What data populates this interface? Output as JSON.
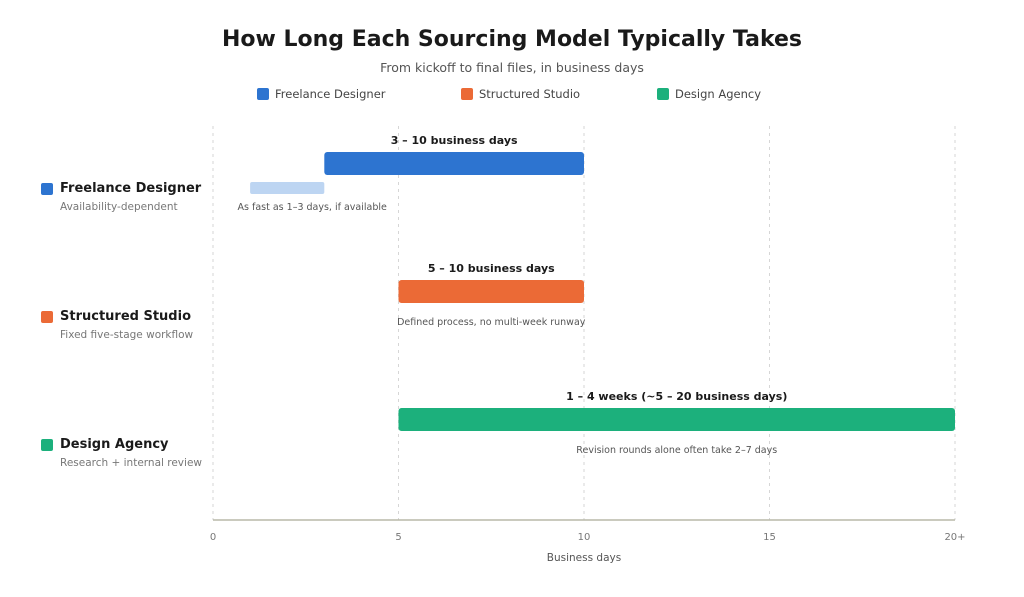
{
  "chart_data": {
    "type": "bar",
    "orientation": "horizontal-range",
    "title": "How Long Each Sourcing Model Typically Takes",
    "subtitle": "From kickoff to final files, in business days",
    "xlabel": "Business days",
    "xlim": [
      0,
      20
    ],
    "xticks": [
      {
        "value": 0,
        "label": "0"
      },
      {
        "value": 5,
        "label": "5"
      },
      {
        "value": 10,
        "label": "10"
      },
      {
        "value": 15,
        "label": "15"
      },
      {
        "value": 20,
        "label": "20+"
      }
    ],
    "grid": "vertical dashed",
    "legend_position": "top",
    "series": [
      {
        "name": "Freelance Designer",
        "category": "Freelance Designer",
        "subtitle": "Availability-dependent",
        "color": "#2d74d0",
        "start": 3,
        "end": 10,
        "label": "3 – 10 business days",
        "secondary": {
          "start": 1,
          "end": 3,
          "color": "#bdd5f2",
          "note": "As fast as 1–3 days, if available"
        }
      },
      {
        "name": "Structured Studio",
        "category": "Structured Studio",
        "subtitle": "Fixed five-stage workflow",
        "color": "#eb6a36",
        "start": 5,
        "end": 10,
        "label": "5 – 10 business days",
        "note": "Defined process, no multi-week runway"
      },
      {
        "name": "Design Agency",
        "category": "Design Agency",
        "subtitle": "Research + internal review",
        "color": "#1cb07c",
        "start": 5,
        "end": 20,
        "label": "1 – 4 weeks (~5 – 20 business days)",
        "note": "Revision rounds alone often take 2–7 days"
      }
    ]
  }
}
